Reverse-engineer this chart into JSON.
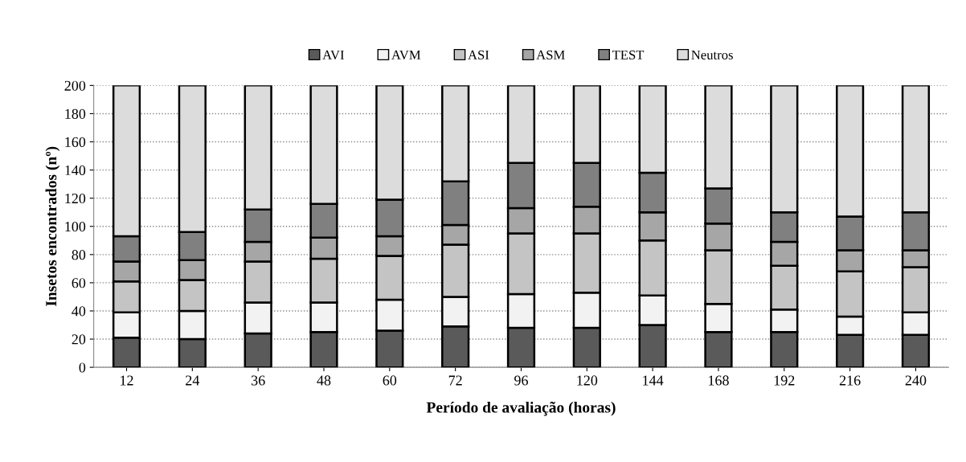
{
  "chart_data": {
    "type": "bar",
    "stacked": true,
    "xlabel": "Período de avaliação (horas)",
    "ylabel": "Insetos encontrados (nº)",
    "categories": [
      "12",
      "24",
      "36",
      "48",
      "60",
      "72",
      "96",
      "120",
      "144",
      "168",
      "192",
      "216",
      "240"
    ],
    "series": [
      {
        "name": "AVI",
        "color": "#5a5a5a",
        "values": [
          21,
          20,
          24,
          25,
          26,
          29,
          28,
          28,
          30,
          25,
          25,
          23,
          23
        ]
      },
      {
        "name": "AVM",
        "color": "#f2f2f2",
        "values": [
          18,
          20,
          22,
          21,
          22,
          21,
          24,
          25,
          21,
          20,
          16,
          13,
          16
        ]
      },
      {
        "name": "ASI",
        "color": "#c4c4c4",
        "values": [
          22,
          22,
          29,
          31,
          31,
          37,
          43,
          42,
          39,
          38,
          31,
          32,
          32
        ]
      },
      {
        "name": "ASM",
        "color": "#a6a6a6",
        "values": [
          14,
          14,
          14,
          15,
          14,
          14,
          18,
          19,
          20,
          19,
          17,
          15,
          12
        ]
      },
      {
        "name": "TEST",
        "color": "#808080",
        "values": [
          18,
          20,
          23,
          24,
          26,
          31,
          32,
          31,
          28,
          25,
          21,
          24,
          27
        ]
      },
      {
        "name": "Neutros",
        "color": "#dcdcdc",
        "values": [
          107,
          104,
          88,
          84,
          81,
          68,
          55,
          55,
          62,
          73,
          90,
          93,
          90
        ]
      }
    ],
    "ylim": [
      0,
      200
    ],
    "yticks": [
      0,
      20,
      40,
      60,
      80,
      100,
      120,
      140,
      160,
      180,
      200
    ],
    "grid": "y",
    "legend": "top"
  }
}
